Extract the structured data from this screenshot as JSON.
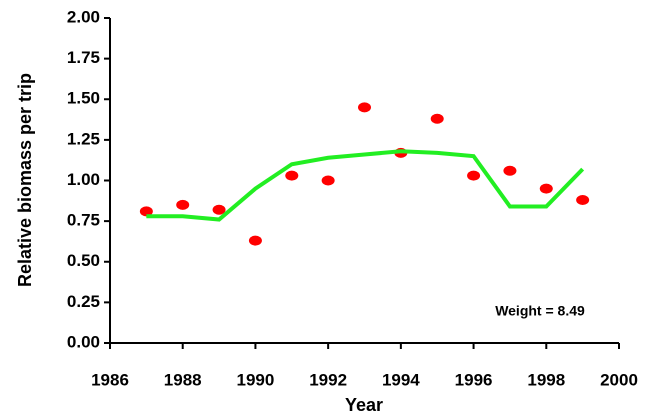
{
  "chart_data": {
    "type": "scatter",
    "x_label": "Year",
    "y_label": "Relative biomass per trip",
    "annotation": "Weight = 8.49",
    "x": [
      1987,
      1988,
      1989,
      1990,
      1991,
      1992,
      1993,
      1994,
      1995,
      1996,
      1997,
      1998,
      1999
    ],
    "series": [
      {
        "type": "scatter",
        "color": "#ff0000",
        "values": [
          0.81,
          0.85,
          0.82,
          0.63,
          1.03,
          1.0,
          1.45,
          1.17,
          1.38,
          1.03,
          1.06,
          0.95,
          0.88
        ]
      },
      {
        "type": "line",
        "color": "#22ee22",
        "values": [
          0.78,
          0.78,
          0.76,
          0.95,
          1.1,
          1.14,
          1.16,
          1.18,
          1.17,
          1.15,
          0.84,
          0.84,
          1.07
        ]
      }
    ],
    "xlim": [
      1986,
      2000
    ],
    "xticks": [
      1986,
      1988,
      1990,
      1992,
      1994,
      1996,
      1998,
      2000
    ],
    "ylim": [
      0,
      2
    ],
    "yticks": [
      {
        "value": 0,
        "label": "0.00"
      },
      {
        "value": 0.25,
        "label": "0.25"
      },
      {
        "value": 0.5,
        "label": "0.50"
      },
      {
        "value": 0.75,
        "label": "0.75"
      },
      {
        "value": 1,
        "label": "1.00"
      },
      {
        "value": 1.25,
        "label": "1.25"
      },
      {
        "value": 1.5,
        "label": "1.50"
      },
      {
        "value": 1.75,
        "label": "1.75"
      },
      {
        "value": 2,
        "label": "2.00"
      }
    ]
  }
}
